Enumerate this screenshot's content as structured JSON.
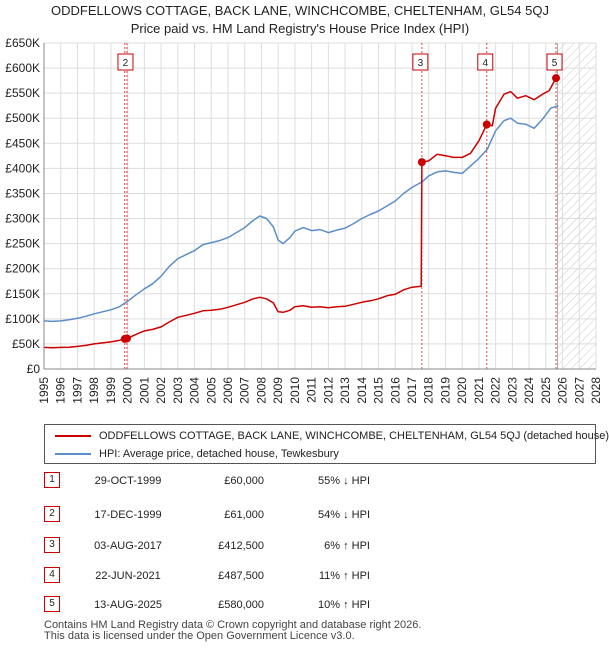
{
  "chart_data": {
    "type": "line",
    "title": "ODDFELLOWS COTTAGE, BACK LANE, WINCHCOMBE, CHELTENHAM, GL54 5QJ",
    "subtitle": "Price paid vs. HM Land Registry's House Price Index (HPI)",
    "xlabel": "",
    "ylabel": "",
    "xlim": [
      1995,
      2028
    ],
    "ylim": [
      0,
      650000
    ],
    "yticks": [
      {
        "value": 0,
        "label": "£0"
      },
      {
        "value": 50000,
        "label": "£50K"
      },
      {
        "value": 100000,
        "label": "£100K"
      },
      {
        "value": 150000,
        "label": "£150K"
      },
      {
        "value": 200000,
        "label": "£200K"
      },
      {
        "value": 250000,
        "label": "£250K"
      },
      {
        "value": 300000,
        "label": "£300K"
      },
      {
        "value": 350000,
        "label": "£350K"
      },
      {
        "value": 400000,
        "label": "£400K"
      },
      {
        "value": 450000,
        "label": "£450K"
      },
      {
        "value": 500000,
        "label": "£500K"
      },
      {
        "value": 550000,
        "label": "£550K"
      },
      {
        "value": 600000,
        "label": "£600K"
      },
      {
        "value": 650000,
        "label": "£650K"
      }
    ],
    "xticks": [
      "1995",
      "1996",
      "1997",
      "1998",
      "1999",
      "2000",
      "2001",
      "2002",
      "2003",
      "2004",
      "2005",
      "2006",
      "2007",
      "2008",
      "2009",
      "2010",
      "2011",
      "2012",
      "2013",
      "2014",
      "2015",
      "2016",
      "2017",
      "2018",
      "2019",
      "2020",
      "2021",
      "2022",
      "2023",
      "2024",
      "2025",
      "2026",
      "2027",
      "2028"
    ],
    "grid": true,
    "forecast_from": 2025.7,
    "series": [
      {
        "name": "ODDFELLOWS COTTAGE, BACK LANE, WINCHCOMBE, CHELTENHAM, GL54 5QJ (detached house)",
        "color": "#cc0000",
        "points": [
          [
            1995.0,
            43000
          ],
          [
            1995.5,
            42500
          ],
          [
            1996.0,
            43000
          ],
          [
            1996.5,
            43500
          ],
          [
            1997.0,
            45000
          ],
          [
            1997.5,
            47000
          ],
          [
            1998.0,
            50000
          ],
          [
            1998.5,
            52000
          ],
          [
            1999.0,
            54000
          ],
          [
            1999.5,
            57000
          ],
          [
            1999.83,
            60000
          ],
          [
            1999.96,
            61000
          ],
          [
            2000.3,
            66000
          ],
          [
            2000.7,
            72000
          ],
          [
            2001.0,
            76000
          ],
          [
            2001.5,
            79000
          ],
          [
            2002.0,
            84000
          ],
          [
            2002.5,
            94000
          ],
          [
            2003.0,
            103000
          ],
          [
            2003.5,
            107000
          ],
          [
            2004.0,
            111000
          ],
          [
            2004.5,
            116000
          ],
          [
            2005.0,
            117000
          ],
          [
            2005.5,
            119000
          ],
          [
            2006.0,
            123000
          ],
          [
            2006.5,
            128000
          ],
          [
            2007.0,
            133000
          ],
          [
            2007.5,
            140000
          ],
          [
            2007.9,
            143000
          ],
          [
            2008.3,
            140000
          ],
          [
            2008.7,
            132000
          ],
          [
            2009.0,
            114000
          ],
          [
            2009.3,
            113000
          ],
          [
            2009.7,
            117000
          ],
          [
            2010.0,
            124000
          ],
          [
            2010.5,
            126000
          ],
          [
            2011.0,
            123000
          ],
          [
            2011.5,
            124000
          ],
          [
            2012.0,
            122000
          ],
          [
            2012.5,
            124000
          ],
          [
            2013.0,
            125000
          ],
          [
            2013.5,
            129000
          ],
          [
            2014.0,
            133000
          ],
          [
            2014.5,
            136000
          ],
          [
            2015.0,
            140000
          ],
          [
            2015.5,
            146000
          ],
          [
            2016.0,
            149000
          ],
          [
            2016.5,
            158000
          ],
          [
            2017.0,
            163000
          ],
          [
            2017.55,
            165000
          ],
          [
            2017.59,
            412500
          ],
          [
            2018.0,
            415000
          ],
          [
            2018.5,
            428000
          ],
          [
            2019.0,
            425000
          ],
          [
            2019.5,
            422000
          ],
          [
            2020.0,
            422000
          ],
          [
            2020.5,
            430000
          ],
          [
            2021.0,
            455000
          ],
          [
            2021.47,
            487500
          ],
          [
            2021.8,
            485000
          ],
          [
            2022.0,
            520000
          ],
          [
            2022.5,
            548000
          ],
          [
            2022.9,
            553000
          ],
          [
            2023.3,
            540000
          ],
          [
            2023.8,
            545000
          ],
          [
            2024.3,
            537000
          ],
          [
            2024.8,
            548000
          ],
          [
            2025.2,
            555000
          ],
          [
            2025.61,
            580000
          ],
          [
            2025.75,
            575000
          ]
        ]
      },
      {
        "name": "HPI: Average price, detached house, Tewkesbury",
        "color": "#5b8ec9",
        "points": [
          [
            1995.0,
            96000
          ],
          [
            1995.5,
            95000
          ],
          [
            1996.0,
            96000
          ],
          [
            1996.5,
            98000
          ],
          [
            1997.0,
            101000
          ],
          [
            1997.5,
            105000
          ],
          [
            1998.0,
            110000
          ],
          [
            1998.5,
            114000
          ],
          [
            1999.0,
            118000
          ],
          [
            1999.5,
            124000
          ],
          [
            2000.0,
            135000
          ],
          [
            2000.5,
            148000
          ],
          [
            2001.0,
            160000
          ],
          [
            2001.5,
            170000
          ],
          [
            2002.0,
            185000
          ],
          [
            2002.5,
            205000
          ],
          [
            2003.0,
            220000
          ],
          [
            2003.5,
            228000
          ],
          [
            2004.0,
            236000
          ],
          [
            2004.5,
            248000
          ],
          [
            2005.0,
            252000
          ],
          [
            2005.5,
            256000
          ],
          [
            2006.0,
            262000
          ],
          [
            2006.5,
            272000
          ],
          [
            2007.0,
            282000
          ],
          [
            2007.5,
            296000
          ],
          [
            2007.9,
            305000
          ],
          [
            2008.3,
            300000
          ],
          [
            2008.7,
            284000
          ],
          [
            2009.0,
            257000
          ],
          [
            2009.3,
            250000
          ],
          [
            2009.7,
            262000
          ],
          [
            2010.0,
            275000
          ],
          [
            2010.5,
            282000
          ],
          [
            2011.0,
            276000
          ],
          [
            2011.5,
            278000
          ],
          [
            2012.0,
            272000
          ],
          [
            2012.5,
            277000
          ],
          [
            2013.0,
            281000
          ],
          [
            2013.5,
            290000
          ],
          [
            2014.0,
            300000
          ],
          [
            2014.5,
            308000
          ],
          [
            2015.0,
            315000
          ],
          [
            2015.5,
            325000
          ],
          [
            2016.0,
            335000
          ],
          [
            2016.5,
            350000
          ],
          [
            2017.0,
            362000
          ],
          [
            2017.6,
            373000
          ],
          [
            2018.0,
            385000
          ],
          [
            2018.5,
            393000
          ],
          [
            2019.0,
            395000
          ],
          [
            2019.5,
            392000
          ],
          [
            2020.0,
            390000
          ],
          [
            2020.5,
            405000
          ],
          [
            2021.0,
            420000
          ],
          [
            2021.5,
            438000
          ],
          [
            2022.0,
            475000
          ],
          [
            2022.5,
            495000
          ],
          [
            2022.9,
            500000
          ],
          [
            2023.3,
            490000
          ],
          [
            2023.8,
            488000
          ],
          [
            2024.3,
            480000
          ],
          [
            2024.8,
            498000
          ],
          [
            2025.3,
            520000
          ],
          [
            2025.75,
            525000
          ]
        ]
      }
    ],
    "sales_markers": [
      {
        "num": "1",
        "x": 1999.83,
        "y": 60000,
        "show_label": false
      },
      {
        "num": "2",
        "x": 1999.96,
        "y": 61000,
        "show_label": true
      },
      {
        "num": "3",
        "x": 2017.59,
        "y": 412500,
        "show_label": true
      },
      {
        "num": "4",
        "x": 2021.47,
        "y": 487500,
        "show_label": true
      },
      {
        "num": "5",
        "x": 2025.61,
        "y": 580000,
        "show_label": true
      }
    ]
  },
  "legend": {
    "property_label": "ODDFELLOWS COTTAGE, BACK LANE, WINCHCOMBE, CHELTENHAM, GL54 5QJ (detached house)",
    "hpi_label": "HPI: Average price, detached house, Tewkesbury"
  },
  "sales": [
    {
      "num": "1",
      "date": "29-OCT-1999",
      "price": "£60,000",
      "hpi": "55% ↓ HPI"
    },
    {
      "num": "2",
      "date": "17-DEC-1999",
      "price": "£61,000",
      "hpi": "54% ↓ HPI"
    },
    {
      "num": "3",
      "date": "03-AUG-2017",
      "price": "£412,500",
      "hpi": "6% ↑ HPI"
    },
    {
      "num": "4",
      "date": "22-JUN-2021",
      "price": "£487,500",
      "hpi": "11% ↑ HPI"
    },
    {
      "num": "5",
      "date": "13-AUG-2025",
      "price": "£580,000",
      "hpi": "10% ↑ HPI"
    }
  ],
  "footer": {
    "line1": "Contains HM Land Registry data © Crown copyright and database right 2026.",
    "line2": "This data is licensed under the Open Government Licence v3.0."
  }
}
